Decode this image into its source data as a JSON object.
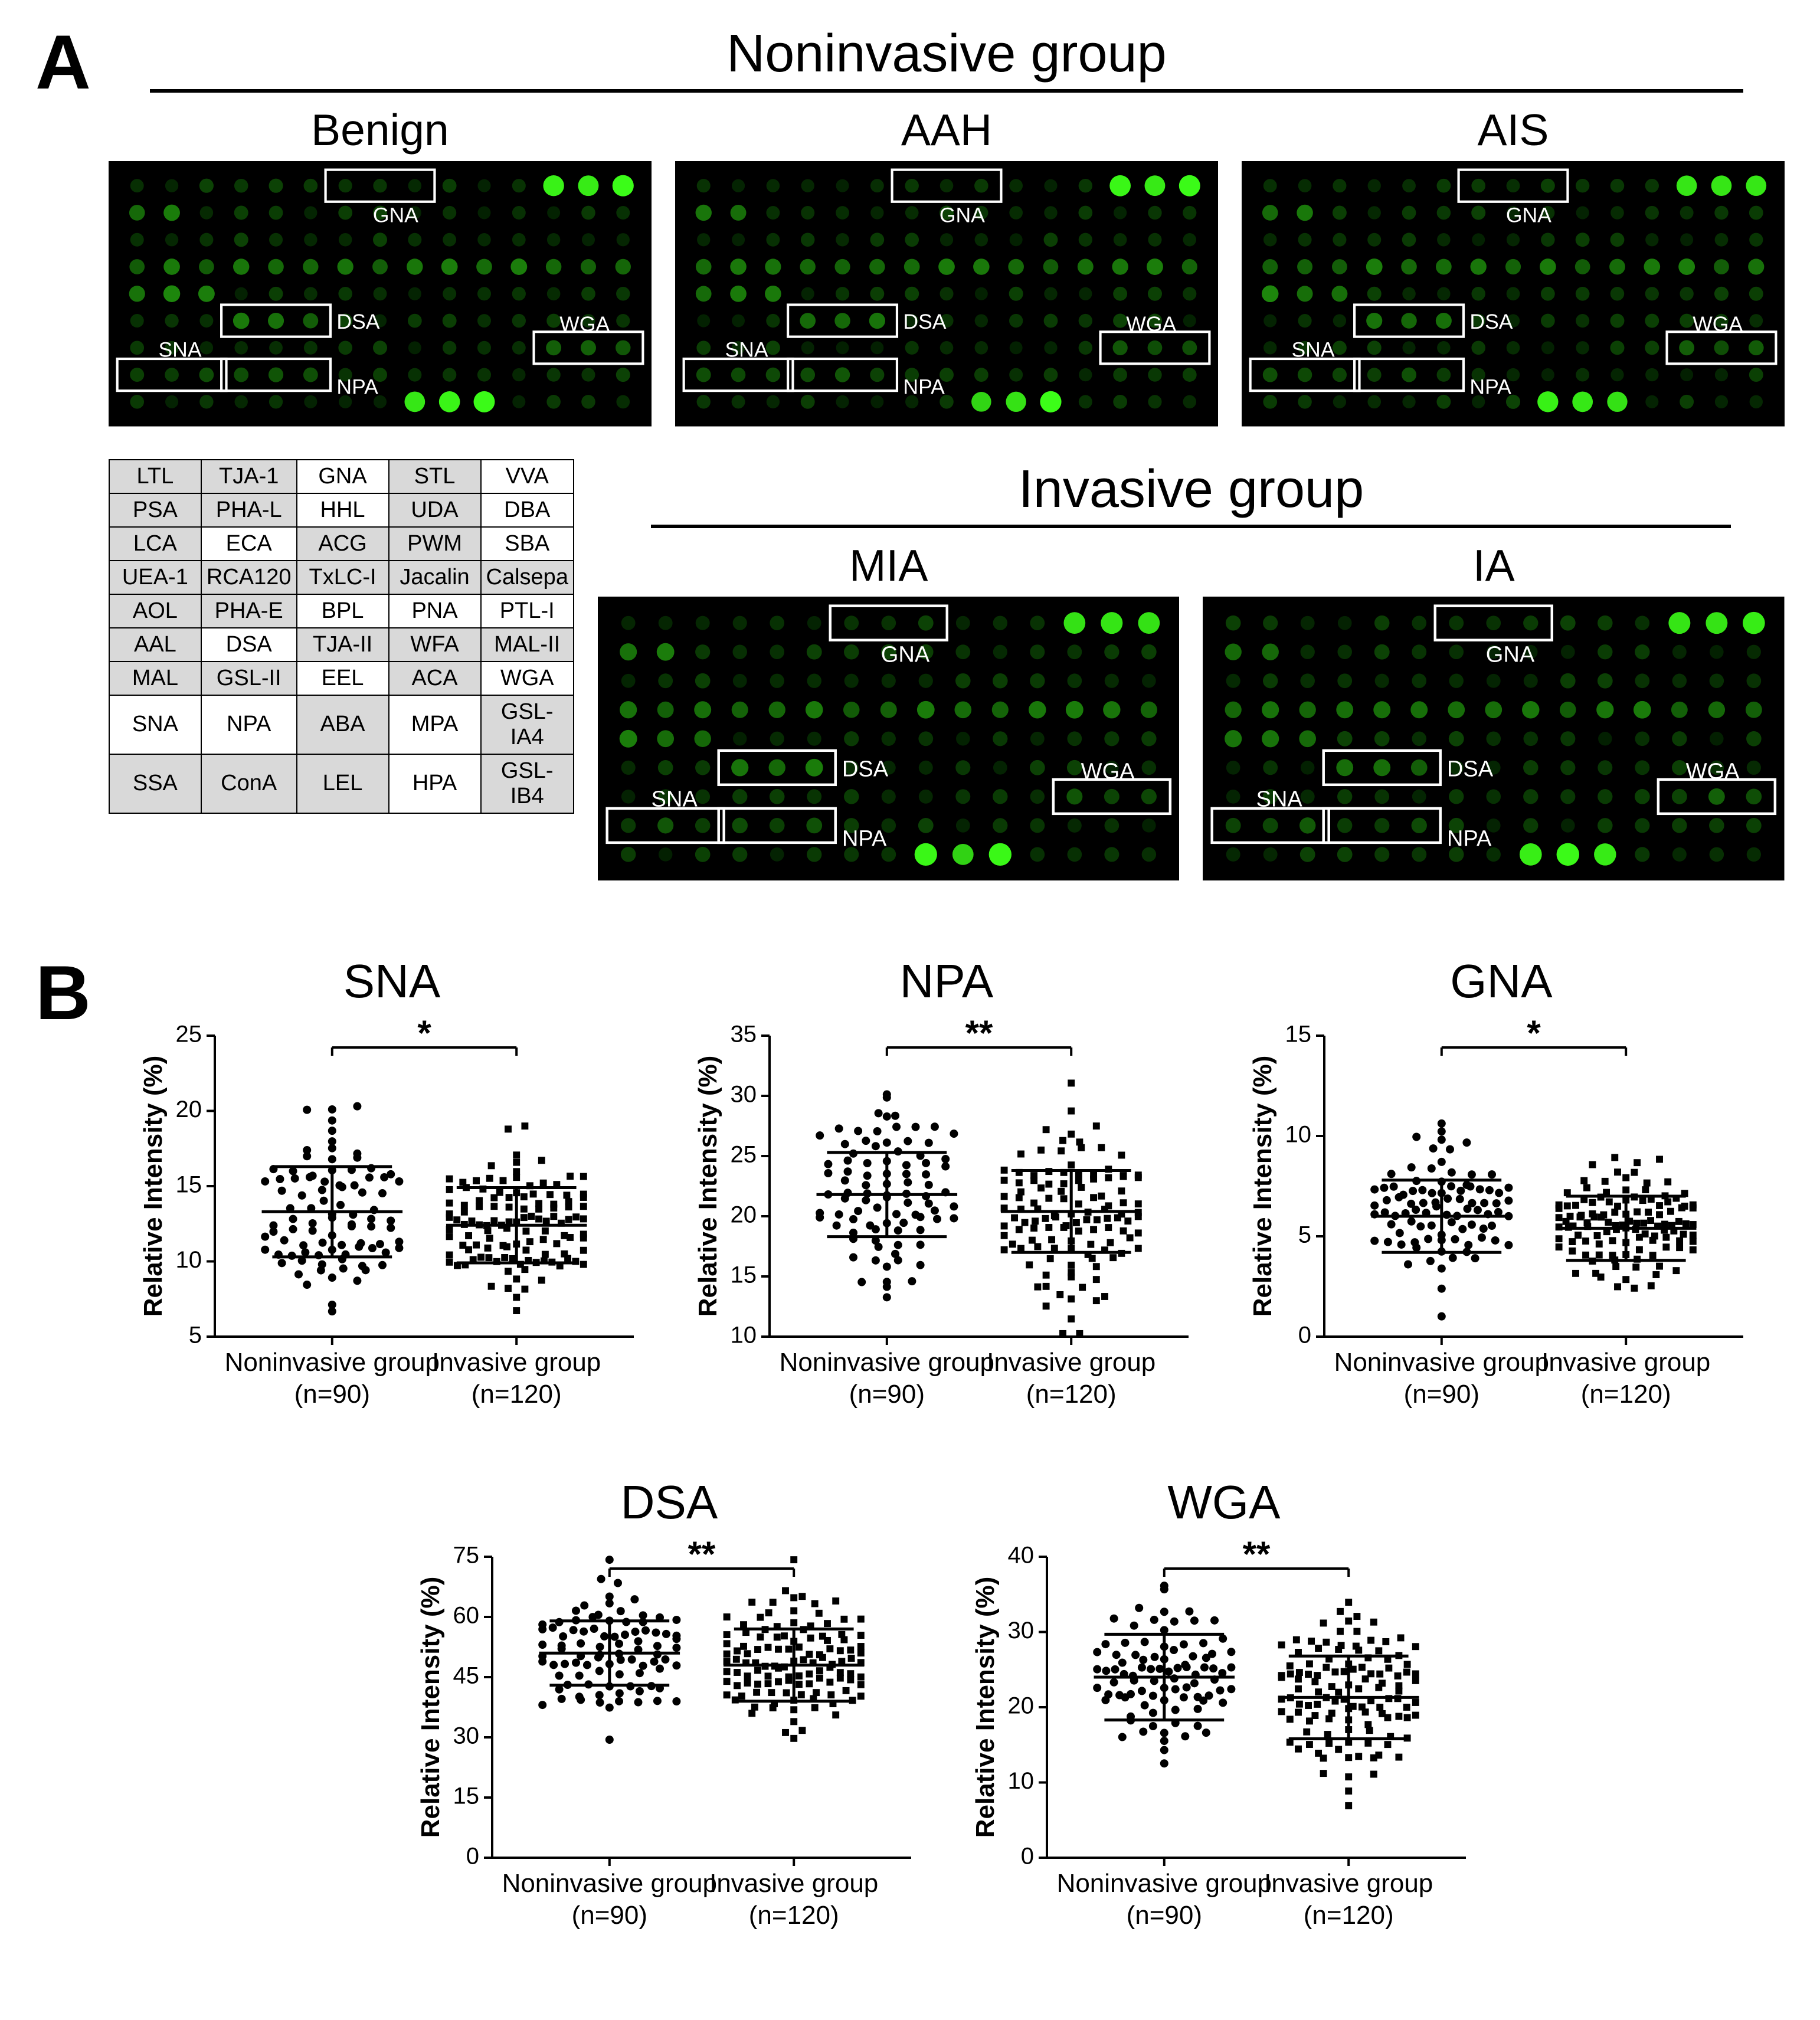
{
  "figure": {
    "panelA": "A",
    "panelB": "B",
    "groups": {
      "noninvasive_label": "Noninvasive group",
      "invasive_label": "Invasive group"
    },
    "array_bg": "#000000",
    "dot_green_bright": "#2aff2a",
    "dot_green_med": "#1aa81a",
    "dot_green_dim": "#0e5a0e",
    "dot_green_faint": "#083608",
    "highlight_box_stroke": "#ffffff",
    "highlight_labels": [
      "GNA",
      "DSA",
      "WGA",
      "SNA",
      "NPA"
    ],
    "arrays": [
      {
        "key": "benign",
        "title": "Benign",
        "group": "noninvasive"
      },
      {
        "key": "aah",
        "title": "AAH",
        "group": "noninvasive"
      },
      {
        "key": "ais",
        "title": "AIS",
        "group": "noninvasive"
      },
      {
        "key": "mia",
        "title": "MIA",
        "group": "invasive"
      },
      {
        "key": "ia",
        "title": "IA",
        "group": "invasive"
      }
    ],
    "lectin_grid": {
      "rows": [
        [
          [
            "LTL",
            "g"
          ],
          [
            "TJA-1",
            "g"
          ],
          [
            "GNA",
            "w"
          ],
          [
            "STL",
            "g"
          ],
          [
            "VVA",
            "w"
          ]
        ],
        [
          [
            "PSA",
            "g"
          ],
          [
            "PHA-L",
            "g"
          ],
          [
            "HHL",
            "w"
          ],
          [
            "UDA",
            "g"
          ],
          [
            "DBA",
            "w"
          ]
        ],
        [
          [
            "LCA",
            "g"
          ],
          [
            "ECA",
            "w"
          ],
          [
            "ACG",
            "g"
          ],
          [
            "PWM",
            "g"
          ],
          [
            "SBA",
            "w"
          ]
        ],
        [
          [
            "UEA-1",
            "g"
          ],
          [
            "RCA120",
            "g"
          ],
          [
            "TxLC-I",
            "g"
          ],
          [
            "Jacalin",
            "g"
          ],
          [
            "Calsepa",
            "g"
          ]
        ],
        [
          [
            "AOL",
            "g"
          ],
          [
            "PHA-E",
            "g"
          ],
          [
            "BPL",
            "w"
          ],
          [
            "PNA",
            "w"
          ],
          [
            "PTL-I",
            "w"
          ]
        ],
        [
          [
            "AAL",
            "g"
          ],
          [
            "DSA",
            "w"
          ],
          [
            "TJA-II",
            "g"
          ],
          [
            "WFA",
            "g"
          ],
          [
            "MAL-II",
            "g"
          ]
        ],
        [
          [
            "MAL",
            "g"
          ],
          [
            "GSL-II",
            "g"
          ],
          [
            "EEL",
            "w"
          ],
          [
            "ACA",
            "g"
          ],
          [
            "WGA",
            "w"
          ]
        ],
        [
          [
            "SNA",
            "w"
          ],
          [
            "NPA",
            "w"
          ],
          [
            "ABA",
            "g"
          ],
          [
            "MPA",
            "w"
          ],
          [
            "GSL-IA4",
            "g"
          ]
        ],
        [
          [
            "SSA",
            "g"
          ],
          [
            "ConA",
            "g"
          ],
          [
            "LEL",
            "g"
          ],
          [
            "HPA",
            "w"
          ],
          [
            "GSL-IB4",
            "g"
          ]
        ]
      ]
    }
  },
  "scatter": {
    "common": {
      "ylabel": "Relative  Intensity (%)",
      "x_categories": [
        "Noninvasive group",
        "Invasive group"
      ],
      "x_sub": [
        "(n=90)",
        "(n=120)"
      ],
      "marker_color": "#000000",
      "marker_size": 7,
      "err_color": "#000000",
      "axis_color": "#000000",
      "label_fontsize": 44,
      "tick_fontsize": 40,
      "title_fontsize": 80,
      "sig_fontsize": 60
    },
    "plots": [
      {
        "key": "SNA",
        "title": "SNA",
        "sig": "*",
        "ylim": [
          5,
          25
        ],
        "yticks": [
          5,
          10,
          15,
          20,
          25
        ],
        "groups": [
          {
            "mean": 13.3,
            "sd": 3.0,
            "n": 90,
            "seed": 11
          },
          {
            "mean": 12.4,
            "sd": 2.5,
            "n": 120,
            "seed": 21
          }
        ]
      },
      {
        "key": "NPA",
        "title": "NPA",
        "sig": "**",
        "ylim": [
          10,
          35
        ],
        "yticks": [
          10,
          15,
          20,
          25,
          30,
          35
        ],
        "groups": [
          {
            "mean": 21.8,
            "sd": 3.5,
            "n": 90,
            "seed": 12
          },
          {
            "mean": 20.4,
            "sd": 3.4,
            "n": 120,
            "seed": 22
          }
        ]
      },
      {
        "key": "GNA",
        "title": "GNA",
        "sig": "*",
        "ylim": [
          0,
          15
        ],
        "yticks": [
          0,
          5,
          10,
          15
        ],
        "groups": [
          {
            "mean": 6.0,
            "sd": 1.8,
            "n": 90,
            "seed": 13
          },
          {
            "mean": 5.4,
            "sd": 1.6,
            "n": 120,
            "seed": 23
          }
        ]
      },
      {
        "key": "DSA",
        "title": "DSA",
        "sig": "**",
        "ylim": [
          0,
          75
        ],
        "yticks": [
          0,
          15,
          30,
          45,
          60,
          75
        ],
        "groups": [
          {
            "mean": 51.0,
            "sd": 8.0,
            "n": 90,
            "seed": 14
          },
          {
            "mean": 48.0,
            "sd": 9.0,
            "n": 120,
            "seed": 24
          }
        ]
      },
      {
        "key": "WGA",
        "title": "WGA",
        "sig": "**",
        "ylim": [
          0,
          40
        ],
        "yticks": [
          0,
          10,
          20,
          30,
          40
        ],
        "groups": [
          {
            "mean": 24.0,
            "sd": 5.7,
            "n": 90,
            "seed": 15
          },
          {
            "mean": 21.3,
            "sd": 5.5,
            "n": 120,
            "seed": 25
          }
        ]
      }
    ]
  }
}
